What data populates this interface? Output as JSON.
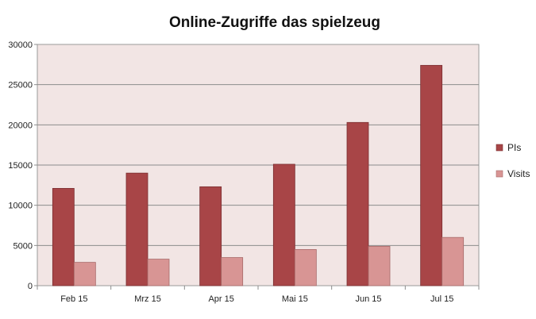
{
  "chart_data": {
    "type": "bar",
    "title": "Online-Zugriffe das spielzeug",
    "xlabel": "",
    "ylabel": "",
    "categories": [
      "Feb 15",
      "Mrz 15",
      "Apr 15",
      "Mai 15",
      "Jun 15",
      "Jul 15"
    ],
    "series": [
      {
        "name": "PIs",
        "values": [
          12100,
          14000,
          12300,
          15100,
          20300,
          27400
        ],
        "color": "#a84547"
      },
      {
        "name": "Visits",
        "values": [
          2900,
          3300,
          3500,
          4500,
          4900,
          6000
        ],
        "color": "#d89594"
      }
    ],
    "ylim": [
      0,
      30000
    ],
    "yticks": [
      0,
      5000,
      10000,
      15000,
      20000,
      25000,
      30000
    ],
    "grid": true,
    "plot_background": "#f2e5e4",
    "legend": "right"
  }
}
